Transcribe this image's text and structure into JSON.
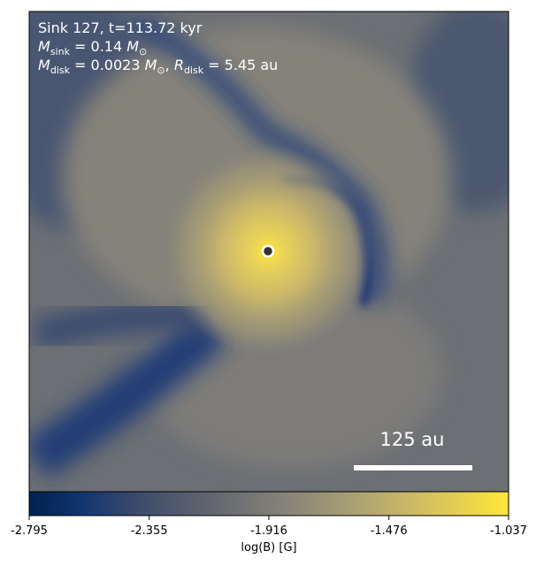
{
  "chart_data": {
    "type": "colormap-image",
    "colormap": "cividis",
    "annotations": [
      [
        {
          "text": "Sink 127, t=113.72 kyr"
        }
      ],
      [
        {
          "text": "M",
          "italic": true
        },
        {
          "text": "sink",
          "sub": true
        },
        {
          "text": " = 0.14 "
        },
        {
          "text": "M",
          "italic": true
        },
        {
          "text": "⊙",
          "sub": true
        }
      ],
      [
        {
          "text": "M",
          "italic": true
        },
        {
          "text": "disk",
          "sub": true
        },
        {
          "text": " = 0.0023 "
        },
        {
          "text": "M",
          "italic": true
        },
        {
          "text": "⊙",
          "sub": true
        },
        {
          "text": ", "
        },
        {
          "text": "R",
          "italic": true
        },
        {
          "text": "disk",
          "sub": true
        },
        {
          "text": " = 5.45 au"
        }
      ]
    ],
    "scale_bar_label": "125 au",
    "colorbar": {
      "label": "log(B) [G]",
      "lim": [
        -2.795,
        -1.037
      ],
      "ticks": [
        -2.795,
        -2.355,
        -1.916,
        -1.476,
        -1.037
      ]
    }
  }
}
